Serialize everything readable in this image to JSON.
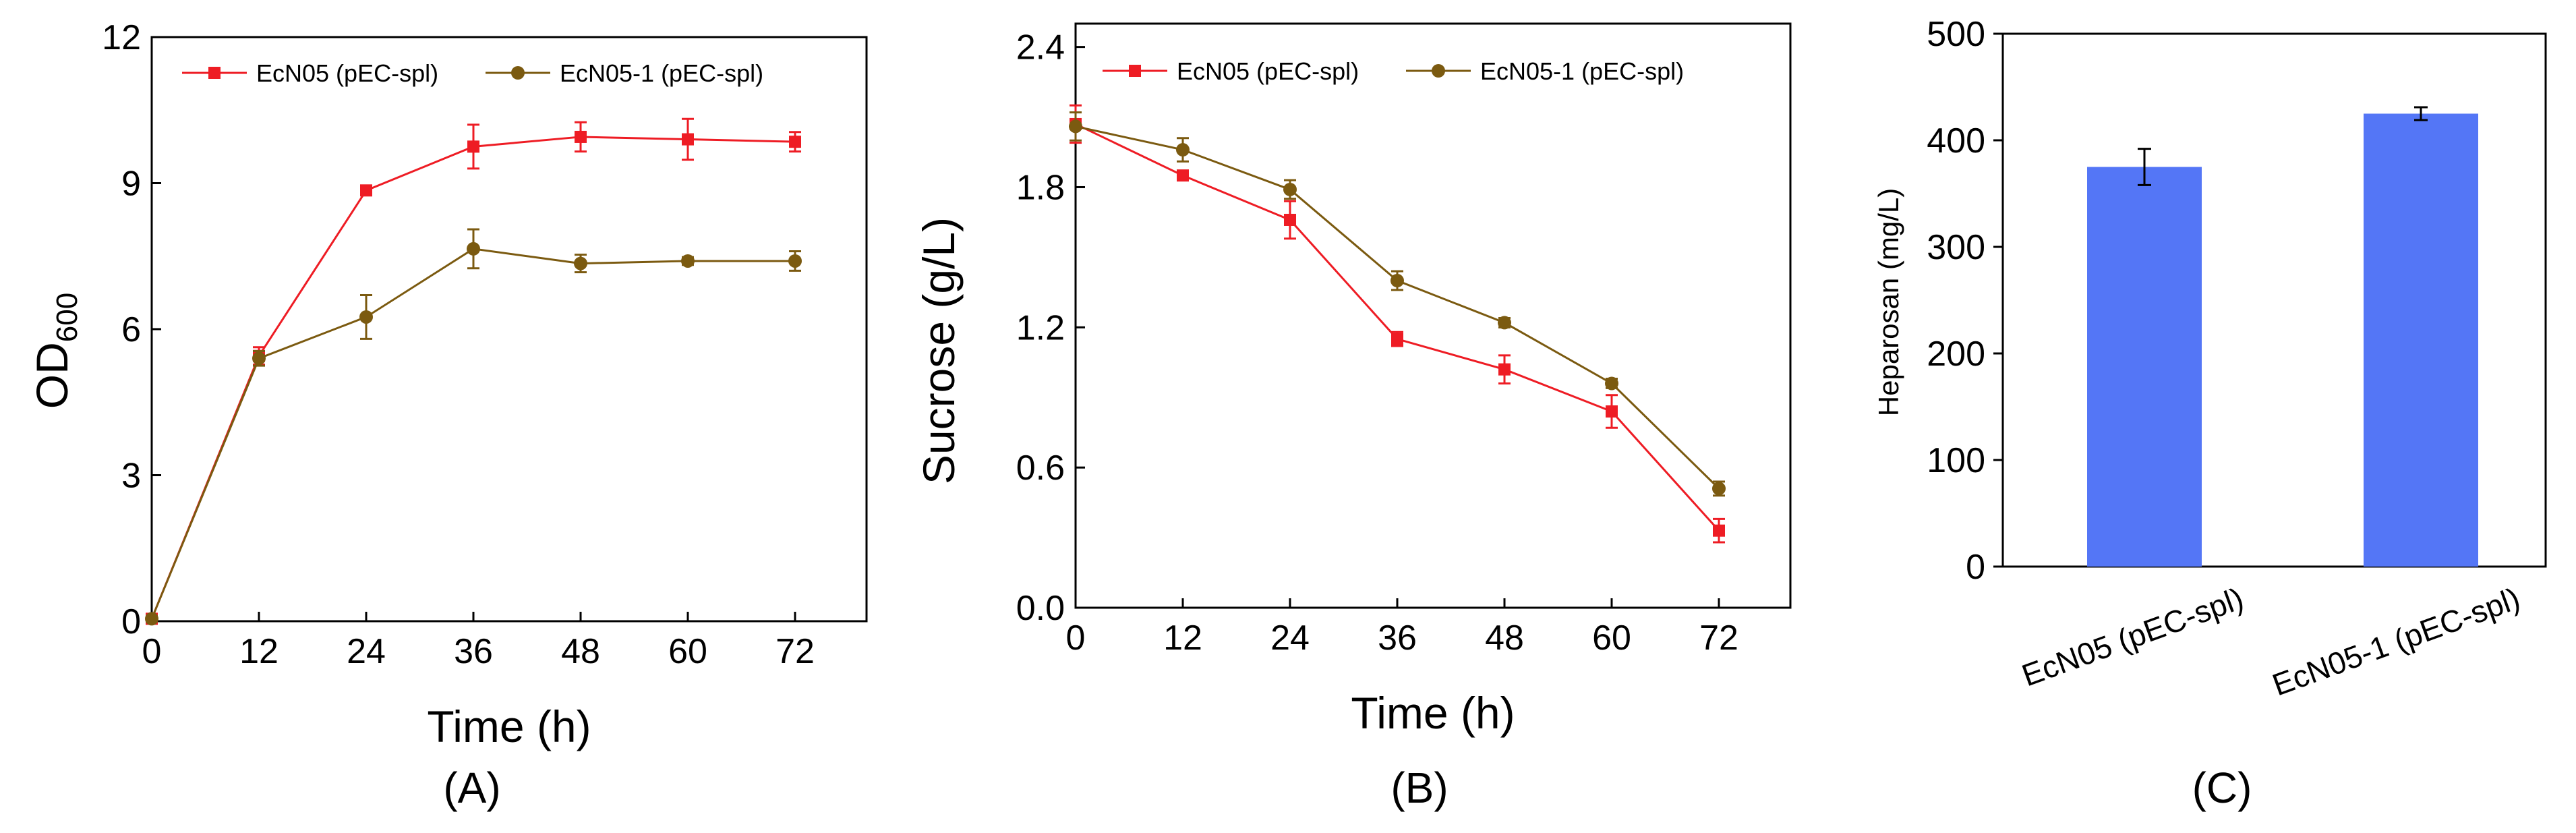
{
  "colors": {
    "ecn05": "#ee1c24",
    "ecn05_1": "#7b5a10",
    "bar": "#5476f6"
  },
  "chart_data": [
    {
      "type": "line",
      "panel_label": "(A)",
      "xlabel": "Time (h)",
      "ylabel_main": "OD",
      "ylabel_sub": "600",
      "x_ticks": [
        "0",
        "12",
        "24",
        "36",
        "48",
        "60",
        "72"
      ],
      "y_ticks": [
        "0",
        "3",
        "6",
        "9",
        "12"
      ],
      "xlim": [
        0,
        80
      ],
      "ylim": [
        0,
        12
      ],
      "x": [
        0,
        12,
        24,
        36,
        48,
        60,
        72
      ],
      "series": [
        {
          "name": "EcN05 (pEC-spl)",
          "marker": "square",
          "color_key": "ecn05",
          "values": [
            0.05,
            5.45,
            8.85,
            9.75,
            9.95,
            9.9,
            9.85
          ],
          "errors": [
            0.05,
            0.18,
            0.05,
            0.45,
            0.3,
            0.42,
            0.2
          ]
        },
        {
          "name": "EcN05-1 (pEC-spl)",
          "marker": "circle",
          "color_key": "ecn05_1",
          "values": [
            0.05,
            5.4,
            6.25,
            7.65,
            7.35,
            7.4,
            7.4
          ],
          "errors": [
            0.05,
            0.15,
            0.45,
            0.4,
            0.18,
            0.08,
            0.2
          ]
        }
      ]
    },
    {
      "type": "line",
      "panel_label": "(B)",
      "xlabel": "Time (h)",
      "ylabel": "Sucrose (g/L)",
      "x_ticks": [
        "0",
        "12",
        "24",
        "36",
        "48",
        "60",
        "72"
      ],
      "y_ticks": [
        "0.0",
        "0.6",
        "1.2",
        "1.8",
        "2.4"
      ],
      "xlim": [
        0,
        80
      ],
      "ylim": [
        0,
        2.5
      ],
      "x": [
        0,
        12,
        24,
        36,
        48,
        60,
        72
      ],
      "series": [
        {
          "name": "EcN05 (pEC-spl)",
          "marker": "square",
          "color_key": "ecn05",
          "values": [
            2.07,
            1.85,
            1.66,
            1.15,
            1.02,
            0.84,
            0.33
          ],
          "errors": [
            0.08,
            0.02,
            0.08,
            0.03,
            0.06,
            0.07,
            0.05
          ]
        },
        {
          "name": "EcN05-1 (pEC-spl)",
          "marker": "circle",
          "color_key": "ecn05_1",
          "values": [
            2.06,
            1.96,
            1.79,
            1.4,
            1.22,
            0.96,
            0.51
          ],
          "errors": [
            0.06,
            0.05,
            0.04,
            0.04,
            0.02,
            0.02,
            0.03
          ]
        }
      ]
    },
    {
      "type": "bar",
      "panel_label": "(C)",
      "ylabel": "Heparosan (mg/L)",
      "categories": [
        "EcN05 (pEC-spl)",
        "EcN05-1 (pEC-spl)"
      ],
      "values": [
        375,
        425
      ],
      "errors": [
        17,
        6
      ],
      "y_ticks": [
        "0",
        "100",
        "200",
        "300",
        "400",
        "500"
      ],
      "ylim": [
        0,
        500
      ]
    }
  ]
}
